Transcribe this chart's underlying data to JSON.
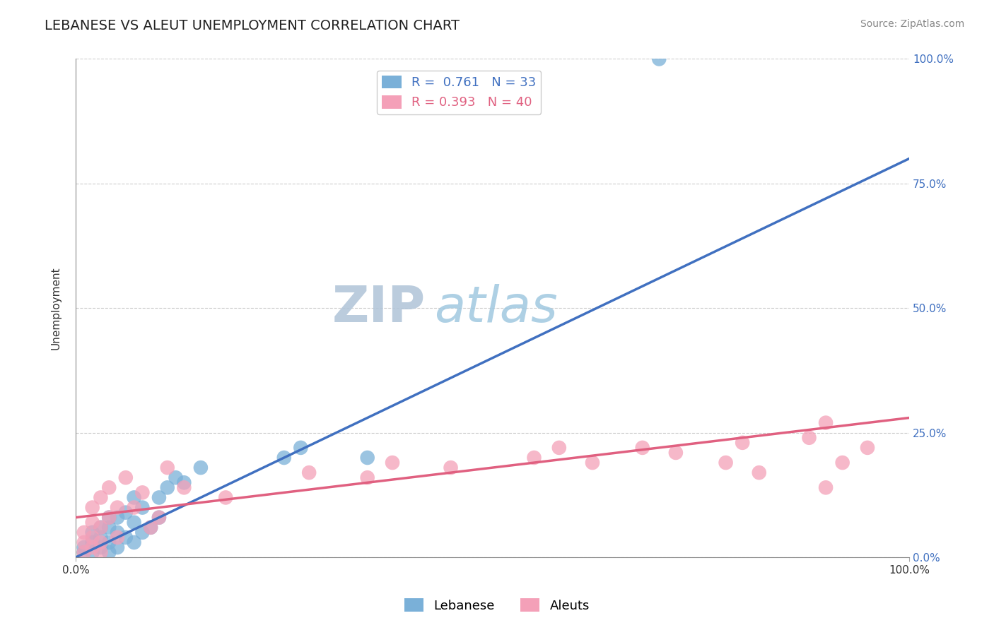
{
  "title": "LEBANESE VS ALEUT UNEMPLOYMENT CORRELATION CHART",
  "source_text": "Source: ZipAtlas.com",
  "ylabel": "Unemployment",
  "yticklabels": [
    "0.0%",
    "25.0%",
    "50.0%",
    "75.0%",
    "100.0%"
  ],
  "ytick_positions": [
    0,
    25,
    50,
    75,
    100
  ],
  "xlim": [
    0,
    100
  ],
  "ylim": [
    0,
    100
  ],
  "background_color": "#ffffff",
  "watermark_text1": "ZIP",
  "watermark_text2": "atlas",
  "watermark_color1": "#b0c4d8",
  "watermark_color2": "#a0c8e0",
  "lebanese_R": 0.761,
  "lebanese_N": 33,
  "aleuts_R": 0.393,
  "aleuts_N": 40,
  "lebanese_color": "#7ab0d8",
  "aleuts_color": "#f4a0b8",
  "lebanese_line_color": "#4070c0",
  "aleuts_line_color": "#e06080",
  "right_axis_color": "#4070c0",
  "lebanese_x": [
    1,
    1,
    2,
    2,
    2,
    3,
    3,
    3,
    4,
    4,
    4,
    4,
    5,
    5,
    5,
    6,
    6,
    7,
    7,
    7,
    8,
    8,
    9,
    10,
    10,
    11,
    12,
    13,
    15,
    25,
    27,
    35,
    70
  ],
  "lebanese_y": [
    1,
    2,
    1,
    3,
    5,
    2,
    4,
    6,
    1,
    3,
    6,
    8,
    2,
    5,
    8,
    4,
    9,
    3,
    7,
    12,
    5,
    10,
    6,
    8,
    12,
    14,
    16,
    15,
    18,
    20,
    22,
    20,
    100
  ],
  "aleuts_x": [
    1,
    1,
    1,
    2,
    2,
    2,
    2,
    3,
    3,
    3,
    3,
    4,
    4,
    5,
    5,
    6,
    7,
    8,
    9,
    10,
    11,
    13,
    18,
    28,
    35,
    38,
    45,
    55,
    58,
    62,
    68,
    72,
    78,
    80,
    82,
    88,
    90,
    90,
    92,
    95
  ],
  "aleuts_y": [
    1,
    3,
    5,
    2,
    4,
    7,
    10,
    1,
    3,
    6,
    12,
    8,
    14,
    4,
    10,
    16,
    10,
    13,
    6,
    8,
    18,
    14,
    12,
    17,
    16,
    19,
    18,
    20,
    22,
    19,
    22,
    21,
    19,
    23,
    17,
    24,
    14,
    27,
    19,
    22
  ],
  "lebanese_trend_x0": 0,
  "lebanese_trend_y0": 0,
  "lebanese_trend_x1": 100,
  "lebanese_trend_y1": 80,
  "aleuts_trend_x0": 0,
  "aleuts_trend_y0": 8,
  "aleuts_trend_x1": 100,
  "aleuts_trend_y1": 28,
  "title_fontsize": 14,
  "axis_label_fontsize": 11,
  "tick_fontsize": 11,
  "legend_fontsize": 13,
  "source_fontsize": 10
}
